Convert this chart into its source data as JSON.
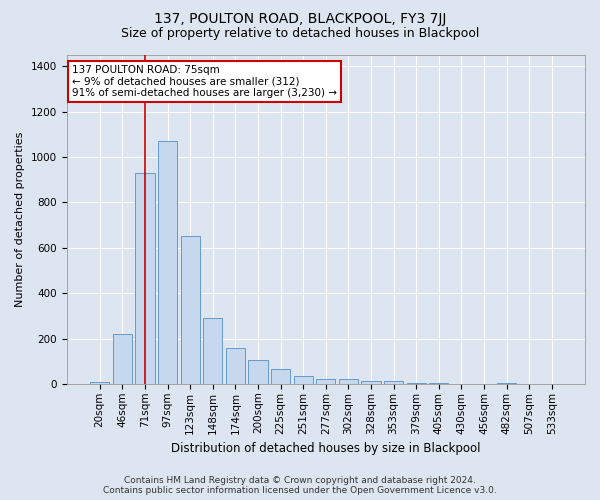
{
  "title": "137, POULTON ROAD, BLACKPOOL, FY3 7JJ",
  "subtitle": "Size of property relative to detached houses in Blackpool",
  "xlabel": "Distribution of detached houses by size in Blackpool",
  "ylabel": "Number of detached properties",
  "bar_labels": [
    "20sqm",
    "46sqm",
    "71sqm",
    "97sqm",
    "123sqm",
    "148sqm",
    "174sqm",
    "200sqm",
    "225sqm",
    "251sqm",
    "277sqm",
    "302sqm",
    "328sqm",
    "353sqm",
    "379sqm",
    "405sqm",
    "430sqm",
    "456sqm",
    "482sqm",
    "507sqm",
    "533sqm"
  ],
  "bar_values": [
    10,
    220,
    930,
    1070,
    650,
    290,
    160,
    105,
    65,
    35,
    20,
    20,
    15,
    12,
    2,
    2,
    1,
    1,
    5,
    1,
    1
  ],
  "bar_color": "#c5d8ee",
  "bar_edgecolor": "#6699cc",
  "bar_linewidth": 0.7,
  "vline_x": 2.0,
  "vline_color": "#cc0000",
  "vline_linewidth": 1.2,
  "annotation_text": "137 POULTON ROAD: 75sqm\n← 9% of detached houses are smaller (312)\n91% of semi-detached houses are larger (3,230) →",
  "annotation_box_facecolor": "#ffffff",
  "annotation_box_edgecolor": "#cc0000",
  "ylim": [
    0,
    1450
  ],
  "yticks": [
    0,
    200,
    400,
    600,
    800,
    1000,
    1200,
    1400
  ],
  "bg_color": "#dde6f0",
  "plot_bg_color": "#dde6f0",
  "grid_color": "#ffffff",
  "footer_line1": "Contains HM Land Registry data © Crown copyright and database right 2024.",
  "footer_line2": "Contains public sector information licensed under the Open Government Licence v3.0.",
  "title_fontsize": 10,
  "subtitle_fontsize": 9,
  "xlabel_fontsize": 8.5,
  "ylabel_fontsize": 8,
  "tick_fontsize": 7.5,
  "footer_fontsize": 6.5,
  "annotation_fontsize": 7.5
}
